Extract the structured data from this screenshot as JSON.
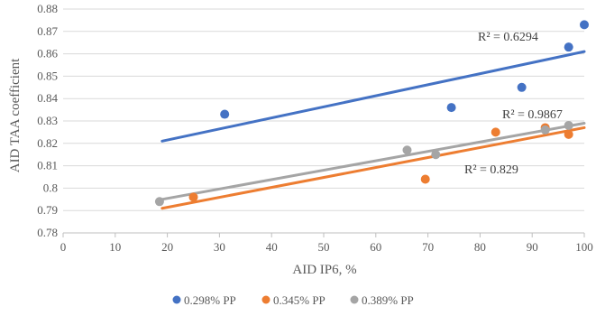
{
  "chart_data": {
    "type": "scatter",
    "xlabel": "AID IP6, %",
    "ylabel": "AID TAA coefficient",
    "xlim": [
      0,
      100
    ],
    "ylim": [
      0.78,
      0.88
    ],
    "x_ticks": [
      "0",
      "10",
      "20",
      "30",
      "40",
      "50",
      "60",
      "70",
      "80",
      "90",
      "100"
    ],
    "y_ticks": [
      "0.78",
      "0.79",
      "0.8",
      "0.81",
      "0.82",
      "0.83",
      "0.84",
      "0.85",
      "0.86",
      "0.87",
      "0.88"
    ],
    "grid": "horizontal",
    "legend_position": "bottom",
    "series": [
      {
        "name": "0.298% PP",
        "color": "#4472C4",
        "points": [
          [
            31,
            0.833
          ],
          [
            74.5,
            0.836
          ],
          [
            88,
            0.845
          ],
          [
            97,
            0.863
          ],
          [
            100,
            0.873
          ]
        ],
        "trendline": [
          [
            19,
            0.821
          ],
          [
            100,
            0.861
          ]
        ],
        "r2_label": "R² = 0.6294"
      },
      {
        "name": "0.345% PP",
        "color": "#ED7D31",
        "points": [
          [
            25,
            0.796
          ],
          [
            69.5,
            0.804
          ],
          [
            83,
            0.825
          ],
          [
            92.5,
            0.827
          ],
          [
            97,
            0.824
          ]
        ],
        "trendline": [
          [
            19,
            0.791
          ],
          [
            100,
            0.827
          ]
        ],
        "r2_label": "R² = 0.829"
      },
      {
        "name": "0.389% PP",
        "color": "#A5A5A5",
        "points": [
          [
            18.5,
            0.794
          ],
          [
            66,
            0.817
          ],
          [
            71.5,
            0.815
          ],
          [
            92.5,
            0.826
          ],
          [
            97,
            0.828
          ]
        ],
        "trendline": [
          [
            19,
            0.795
          ],
          [
            100,
            0.829
          ]
        ],
        "r2_label": "R² = 0.9867"
      }
    ]
  }
}
